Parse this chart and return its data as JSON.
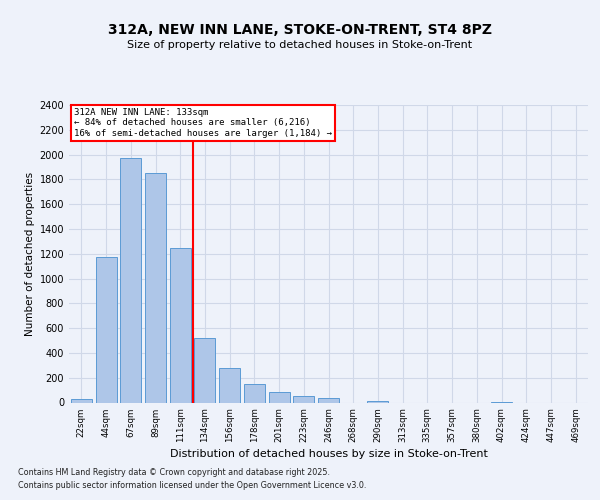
{
  "title": "312A, NEW INN LANE, STOKE-ON-TRENT, ST4 8PZ",
  "subtitle": "Size of property relative to detached houses in Stoke-on-Trent",
  "xlabel": "Distribution of detached houses by size in Stoke-on-Trent",
  "ylabel": "Number of detached properties",
  "footer_line1": "Contains HM Land Registry data © Crown copyright and database right 2025.",
  "footer_line2": "Contains public sector information licensed under the Open Government Licence v3.0.",
  "categories": [
    "22sqm",
    "44sqm",
    "67sqm",
    "89sqm",
    "111sqm",
    "134sqm",
    "156sqm",
    "178sqm",
    "201sqm",
    "223sqm",
    "246sqm",
    "268sqm",
    "290sqm",
    "313sqm",
    "335sqm",
    "357sqm",
    "380sqm",
    "402sqm",
    "424sqm",
    "447sqm",
    "469sqm"
  ],
  "values": [
    30,
    1170,
    1970,
    1855,
    1250,
    520,
    275,
    150,
    85,
    50,
    40,
    0,
    15,
    0,
    0,
    0,
    0,
    5,
    0,
    0,
    0
  ],
  "bar_color": "#aec6e8",
  "bar_edge_color": "#5b9bd5",
  "grid_color": "#d0d8e8",
  "vline_color": "red",
  "annotation_title": "312A NEW INN LANE: 133sqm",
  "annotation_line2": "← 84% of detached houses are smaller (6,216)",
  "annotation_line3": "16% of semi-detached houses are larger (1,184) →",
  "ylim": [
    0,
    2400
  ],
  "yticks": [
    0,
    200,
    400,
    600,
    800,
    1000,
    1200,
    1400,
    1600,
    1800,
    2000,
    2200,
    2400
  ],
  "bg_color": "#eef2fa",
  "plot_bg_color": "#eef2fa"
}
